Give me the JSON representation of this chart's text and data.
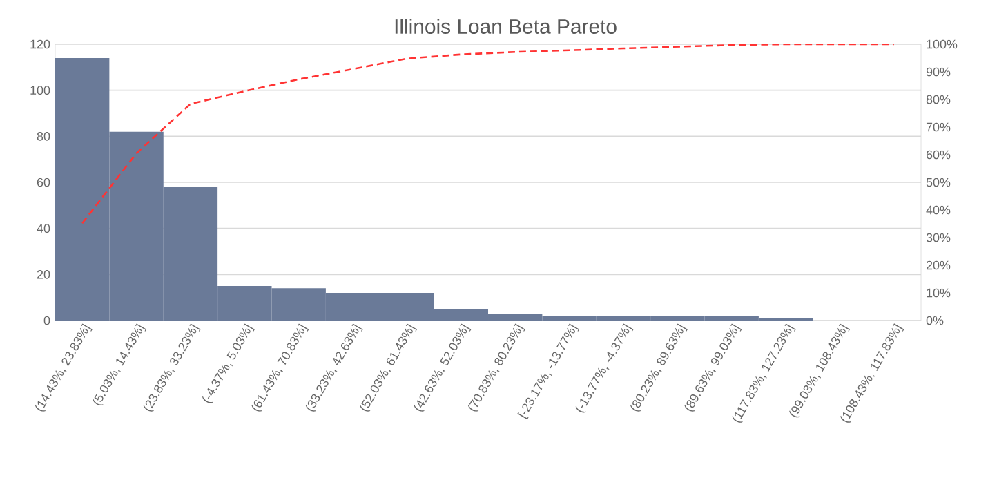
{
  "chart_data": {
    "type": "bar",
    "title": "Illinois Loan Beta Pareto",
    "categories": [
      "(14.43%, 23.83%]",
      "(5.03%, 14.43%]",
      "(23.83%, 33.23%]",
      "(-4.37%, 5.03%]",
      "(61.43%, 70.83%]",
      "(33.23%, 42.63%]",
      "(52.03%, 61.43%]",
      "(42.63%, 52.03%]",
      "(70.83%, 80.23%]",
      "[-23.17%, -13.77%]",
      "(-13.77%, -4.37%]",
      "(80.23%, 89.63%]",
      "(89.63%, 99.03%]",
      "(117.83%, 127.23%]",
      "(99.03%, 108.43%]",
      "(108.43%, 117.83%]"
    ],
    "series": [
      {
        "color": "#6a7a98",
        "values": [
          114,
          82,
          58,
          15,
          14,
          12,
          12,
          5,
          3,
          2,
          2,
          2,
          2,
          1,
          0,
          0
        ]
      },
      {
        "type": "line",
        "axis": "y2",
        "color": "#ff3333",
        "line_style": "dashed",
        "values": [
          35.2,
          60.5,
          78.4,
          83.0,
          87.3,
          91.0,
          94.8,
          96.3,
          97.2,
          97.8,
          98.5,
          99.1,
          99.7,
          100,
          100,
          100
        ]
      }
    ],
    "ylim": [
      0,
      120
    ],
    "yticks": [
      0,
      20,
      40,
      60,
      80,
      100,
      120
    ],
    "y2lim": [
      0,
      100
    ],
    "y2ticks": [
      {
        "value": 0,
        "label": "0%"
      },
      {
        "value": 10,
        "label": "10%"
      },
      {
        "value": 20,
        "label": "20%"
      },
      {
        "value": 30,
        "label": "30%"
      },
      {
        "value": 40,
        "label": "40%"
      },
      {
        "value": 50,
        "label": "50%"
      },
      {
        "value": 60,
        "label": "60%"
      },
      {
        "value": 70,
        "label": "70%"
      },
      {
        "value": 80,
        "label": "80%"
      },
      {
        "value": 90,
        "label": "90%"
      },
      {
        "value": 100,
        "label": "100%"
      }
    ],
    "grid": "y"
  }
}
